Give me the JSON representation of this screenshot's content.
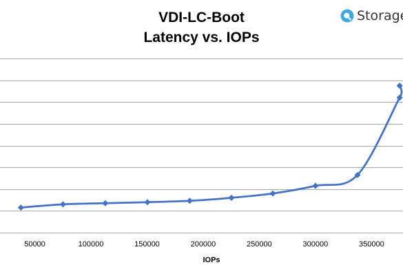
{
  "colors": {
    "series": "#4472C4",
    "grid": "#A6A6A6",
    "logo_accent": "#3FA9DD"
  },
  "logo": {
    "text": "Storage",
    "icon": "storage-review-logo-icon"
  },
  "chart_data": {
    "type": "line",
    "title_line1": "VDI-LC-Boot",
    "title_line2": "Latency vs. IOPs",
    "xlabel": "IOPs",
    "ylabel": "",
    "xlim": [
      19000,
      378000
    ],
    "ylim": [
      0,
      8
    ],
    "x_ticks": [
      "50000",
      "100000",
      "150000",
      "200000",
      "250000",
      "300000",
      "350000"
    ],
    "grid": "horizontal",
    "legend": "none",
    "smooth": true,
    "series": [
      {
        "x": [
          37600,
          75100,
          112800,
          150300,
          188000,
          225200,
          262000,
          300000,
          337500,
          375000
        ],
        "y": [
          1.15,
          1.3,
          1.35,
          1.4,
          1.46,
          1.6,
          1.8,
          2.15,
          2.65,
          6.2
        ]
      }
    ],
    "cut_off_point": {
      "x": 375000,
      "y": 6.75
    }
  }
}
